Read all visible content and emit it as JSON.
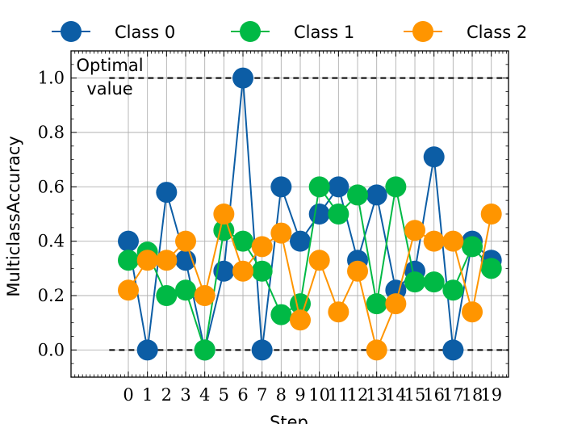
{
  "chart_data": {
    "type": "line",
    "xlabel": "Step",
    "ylabel": "MulticlassAccuracy",
    "x": [
      0,
      1,
      2,
      3,
      4,
      5,
      6,
      7,
      8,
      9,
      10,
      11,
      12,
      13,
      14,
      15,
      16,
      17,
      18,
      19
    ],
    "xlim": [
      -3,
      19.9
    ],
    "ylim": [
      -0.1,
      1.1
    ],
    "yticks": [
      0.0,
      0.2,
      0.4,
      0.6,
      0.8,
      1.0
    ],
    "ytick_labels": [
      "0.0",
      "0.2",
      "0.4",
      "0.6",
      "0.8",
      "1.0"
    ],
    "grid": true,
    "legend_position": "top",
    "series": [
      {
        "name": "Class 0",
        "color": "#0C5DA5",
        "values": [
          0.4,
          0.0,
          0.58,
          0.33,
          0.0,
          0.29,
          1.0,
          0.0,
          0.6,
          0.4,
          0.5,
          0.6,
          0.33,
          0.57,
          0.22,
          0.29,
          0.71,
          0.0,
          0.4,
          0.33
        ]
      },
      {
        "name": "Class 1",
        "color": "#00B945",
        "values": [
          0.33,
          0.36,
          0.2,
          0.22,
          0.0,
          0.44,
          0.4,
          0.29,
          0.13,
          0.17,
          0.6,
          0.5,
          0.57,
          0.17,
          0.6,
          0.25,
          0.25,
          0.22,
          0.38,
          0.3
        ]
      },
      {
        "name": "Class 2",
        "color": "#FF9500",
        "values": [
          0.22,
          0.33,
          0.33,
          0.4,
          0.2,
          0.5,
          0.29,
          0.38,
          0.43,
          0.11,
          0.33,
          0.14,
          0.29,
          0.0,
          0.17,
          0.44,
          0.4,
          0.4,
          0.14,
          0.5
        ]
      }
    ],
    "reference_lines": [
      {
        "y": 1.0,
        "x_from": -1,
        "x_to": 19.9,
        "style": "dashed",
        "color": "#000000"
      },
      {
        "y": 0.0,
        "x_from": -1,
        "x_to": 19.9,
        "style": "dashed",
        "color": "#000000"
      }
    ],
    "annotation": {
      "line1": "Optimal",
      "line2": "value"
    }
  }
}
